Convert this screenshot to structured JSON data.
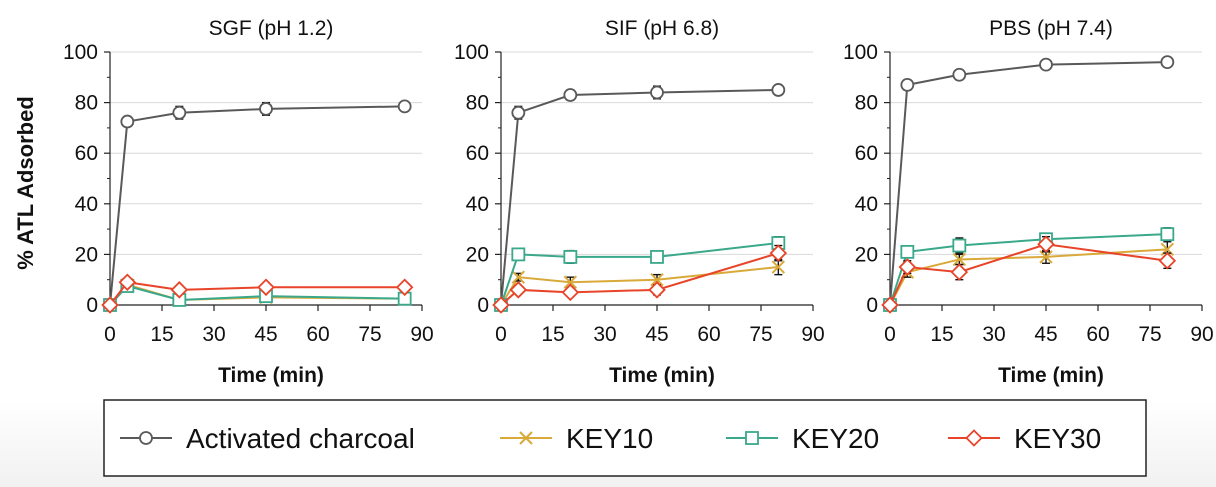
{
  "figure": {
    "ylabel": "% ATL Adsorbed",
    "xlabel": "Time (min)",
    "colors": {
      "Activated charcoal": "#595959",
      "KEY10": "#d9a93a",
      "KEY20": "#3aa88a",
      "KEY30": "#e8442a"
    },
    "markers": {
      "Activated charcoal": "circle",
      "KEY10": "x",
      "KEY20": "square",
      "KEY30": "diamond"
    }
  },
  "legend": {
    "items": [
      "Activated charcoal",
      "KEY10",
      "KEY20",
      "KEY30"
    ],
    "placement": "bottom"
  },
  "chart_data": [
    {
      "type": "line",
      "title": "SGF (pH 1.2)",
      "xlabel": "Time (min)",
      "ylabel": "% ATL Adsorbed",
      "xlim": [
        0,
        90
      ],
      "ylim": [
        0,
        100
      ],
      "xticks": [
        0,
        15,
        30,
        45,
        60,
        75,
        90
      ],
      "yticks": [
        0,
        20,
        40,
        60,
        80,
        100
      ],
      "grid": "horizontal",
      "x": [
        0,
        5,
        20,
        45,
        85
      ],
      "series": [
        {
          "name": "Activated charcoal",
          "values": [
            0,
            72.5,
            76,
            77.5,
            78.5
          ],
          "errors": [
            0,
            1.5,
            2.5,
            2.5,
            1.5
          ]
        },
        {
          "name": "KEY10",
          "values": [
            0,
            8,
            2,
            3,
            2.5
          ],
          "errors": [
            0,
            1,
            1,
            1,
            1
          ]
        },
        {
          "name": "KEY20",
          "values": [
            0,
            7.5,
            2,
            3.5,
            2.5
          ],
          "errors": [
            0,
            1,
            1,
            1,
            1
          ]
        },
        {
          "name": "KEY30",
          "values": [
            0,
            9,
            6,
            7,
            7
          ],
          "errors": [
            0,
            1,
            1.5,
            1,
            1
          ]
        }
      ]
    },
    {
      "type": "line",
      "title": "SIF (pH 6.8)",
      "xlabel": "Time (min)",
      "ylabel": "",
      "xlim": [
        0,
        90
      ],
      "ylim": [
        0,
        100
      ],
      "xticks": [
        0,
        15,
        30,
        45,
        60,
        75,
        90
      ],
      "yticks": [
        0,
        20,
        40,
        60,
        80,
        100
      ],
      "grid": "horizontal",
      "x": [
        0,
        5,
        20,
        45,
        80
      ],
      "series": [
        {
          "name": "Activated charcoal",
          "values": [
            0,
            76,
            83,
            84,
            85
          ],
          "errors": [
            0,
            2.5,
            2,
            2.5,
            1.5
          ]
        },
        {
          "name": "KEY10",
          "values": [
            0,
            11,
            9,
            10,
            15
          ],
          "errors": [
            0,
            1.5,
            2,
            2,
            3
          ]
        },
        {
          "name": "KEY20",
          "values": [
            0,
            20,
            19,
            19,
            24.5
          ],
          "errors": [
            0,
            2,
            2.5,
            2,
            2.5
          ]
        },
        {
          "name": "KEY30",
          "values": [
            0,
            6,
            5,
            6,
            20.5
          ],
          "errors": [
            0,
            1.5,
            1.5,
            2,
            3
          ]
        }
      ]
    },
    {
      "type": "line",
      "title": "PBS (pH 7.4)",
      "xlabel": "Time (min)",
      "ylabel": "",
      "xlim": [
        0,
        90
      ],
      "ylim": [
        0,
        100
      ],
      "xticks": [
        0,
        15,
        30,
        45,
        60,
        75,
        90
      ],
      "yticks": [
        0,
        20,
        40,
        60,
        80,
        100
      ],
      "grid": "horizontal",
      "x": [
        0,
        5,
        20,
        45,
        80
      ],
      "series": [
        {
          "name": "Activated charcoal",
          "values": [
            0,
            87,
            91,
            95,
            96
          ],
          "errors": [
            0,
            2,
            2,
            1.5,
            1.5
          ]
        },
        {
          "name": "KEY10",
          "values": [
            0,
            13,
            18,
            19,
            22
          ],
          "errors": [
            0,
            2,
            2,
            2.5,
            3
          ]
        },
        {
          "name": "KEY20",
          "values": [
            0,
            21,
            23.5,
            26,
            28
          ],
          "errors": [
            0,
            2,
            3,
            2,
            2.5
          ]
        },
        {
          "name": "KEY30",
          "values": [
            0,
            15,
            13,
            24,
            17.5
          ],
          "errors": [
            0,
            2.5,
            3,
            3,
            3
          ]
        }
      ]
    }
  ]
}
